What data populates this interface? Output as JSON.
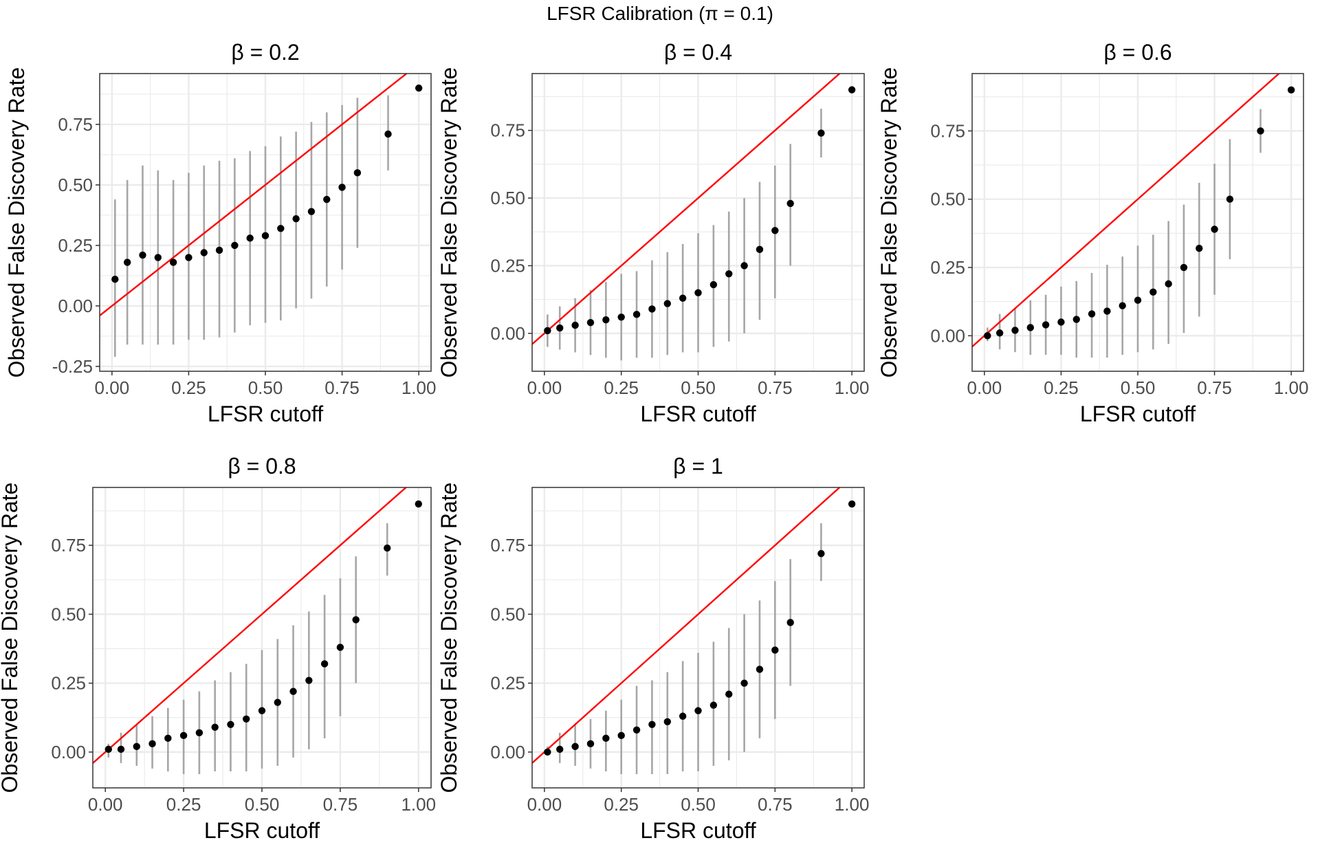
{
  "figure": {
    "title": "LFSR Calibration (π = 0.1)"
  },
  "colors": {
    "identity_line": "#ff0000",
    "points": "#000000",
    "error_bars": "#a6a6a6",
    "grid": "#ebebeb",
    "panel_border": "#333333",
    "tick_label": "#4d4d4d"
  },
  "chart_data": [
    {
      "type": "scatter",
      "title": "β = 0.2",
      "xlabel": "LFSR cutoff",
      "ylabel": "Observed False Discovery Rate",
      "xlim": [
        -0.04,
        1.04
      ],
      "ylim": [
        -0.27,
        0.96
      ],
      "xticks": [
        0,
        0.25,
        0.5,
        0.75,
        1
      ],
      "xtick_labels": [
        "0.00",
        "0.25",
        "0.50",
        "0.75",
        "1.00"
      ],
      "yticks": [
        -0.25,
        0,
        0.25,
        0.5,
        0.75
      ],
      "ytick_labels": [
        "-0.25",
        "0.00",
        "0.25",
        "0.50",
        "0.75"
      ],
      "reference_line": "y = x",
      "x": [
        0.01,
        0.05,
        0.1,
        0.15,
        0.2,
        0.25,
        0.3,
        0.35,
        0.4,
        0.45,
        0.5,
        0.55,
        0.6,
        0.65,
        0.7,
        0.75,
        0.8,
        0.9,
        1.0
      ],
      "y": [
        0.11,
        0.18,
        0.21,
        0.2,
        0.18,
        0.2,
        0.22,
        0.23,
        0.25,
        0.28,
        0.29,
        0.32,
        0.36,
        0.39,
        0.44,
        0.49,
        0.55,
        0.71,
        0.9
      ],
      "lower": [
        -0.21,
        -0.16,
        -0.16,
        -0.16,
        -0.16,
        -0.14,
        -0.14,
        -0.13,
        -0.11,
        -0.08,
        -0.07,
        -0.06,
        -0.01,
        0.03,
        0.08,
        0.15,
        0.24,
        0.56,
        null
      ],
      "upper": [
        0.44,
        0.52,
        0.58,
        0.56,
        0.52,
        0.55,
        0.58,
        0.6,
        0.61,
        0.64,
        0.66,
        0.7,
        0.72,
        0.76,
        0.8,
        0.83,
        0.86,
        0.87,
        null
      ]
    },
    {
      "type": "scatter",
      "title": "β = 0.4",
      "xlabel": "LFSR cutoff",
      "ylabel": "Observed False Discovery Rate",
      "xlim": [
        -0.04,
        1.04
      ],
      "ylim": [
        -0.14,
        0.96
      ],
      "xticks": [
        0,
        0.25,
        0.5,
        0.75,
        1
      ],
      "xtick_labels": [
        "0.00",
        "0.25",
        "0.50",
        "0.75",
        "1.00"
      ],
      "yticks": [
        0,
        0.25,
        0.5,
        0.75
      ],
      "ytick_labels": [
        "0.00",
        "0.25",
        "0.50",
        "0.75"
      ],
      "reference_line": "y = x",
      "x": [
        0.01,
        0.05,
        0.1,
        0.15,
        0.2,
        0.25,
        0.3,
        0.35,
        0.4,
        0.45,
        0.5,
        0.55,
        0.6,
        0.65,
        0.7,
        0.75,
        0.8,
        0.9,
        1.0
      ],
      "y": [
        0.01,
        0.02,
        0.03,
        0.04,
        0.05,
        0.06,
        0.07,
        0.09,
        0.11,
        0.13,
        0.15,
        0.18,
        0.22,
        0.25,
        0.31,
        0.38,
        0.48,
        0.74,
        0.9
      ],
      "lower": [
        -0.05,
        -0.06,
        -0.07,
        -0.08,
        -0.09,
        -0.1,
        -0.09,
        -0.09,
        -0.08,
        -0.07,
        -0.07,
        -0.05,
        -0.03,
        0.0,
        0.05,
        0.13,
        0.25,
        0.65,
        null
      ],
      "upper": [
        0.07,
        0.1,
        0.13,
        0.16,
        0.19,
        0.22,
        0.23,
        0.27,
        0.3,
        0.33,
        0.37,
        0.4,
        0.45,
        0.5,
        0.56,
        0.62,
        0.7,
        0.83,
        null
      ]
    },
    {
      "type": "scatter",
      "title": "β = 0.6",
      "xlabel": "LFSR cutoff",
      "ylabel": "Observed False Discovery Rate",
      "xlim": [
        -0.04,
        1.04
      ],
      "ylim": [
        -0.13,
        0.96
      ],
      "xticks": [
        0,
        0.25,
        0.5,
        0.75,
        1
      ],
      "xtick_labels": [
        "0.00",
        "0.25",
        "0.50",
        "0.75",
        "1.00"
      ],
      "yticks": [
        0,
        0.25,
        0.5,
        0.75
      ],
      "ytick_labels": [
        "0.00",
        "0.25",
        "0.50",
        "0.75"
      ],
      "reference_line": "y = x",
      "x": [
        0.01,
        0.05,
        0.1,
        0.15,
        0.2,
        0.25,
        0.3,
        0.35,
        0.4,
        0.45,
        0.5,
        0.55,
        0.6,
        0.65,
        0.7,
        0.75,
        0.8,
        0.9,
        1.0
      ],
      "y": [
        0.0,
        0.01,
        0.02,
        0.03,
        0.04,
        0.05,
        0.06,
        0.08,
        0.09,
        0.11,
        0.13,
        0.16,
        0.19,
        0.25,
        0.32,
        0.39,
        0.5,
        0.75,
        0.9
      ],
      "lower": [
        -0.02,
        -0.05,
        -0.06,
        -0.07,
        -0.07,
        -0.07,
        -0.08,
        -0.08,
        -0.08,
        -0.07,
        -0.06,
        -0.05,
        -0.03,
        0.01,
        0.07,
        0.15,
        0.28,
        0.67,
        null
      ],
      "upper": [
        0.03,
        0.08,
        0.1,
        0.13,
        0.15,
        0.18,
        0.2,
        0.23,
        0.26,
        0.29,
        0.33,
        0.37,
        0.42,
        0.48,
        0.56,
        0.63,
        0.72,
        0.83,
        null
      ]
    },
    {
      "type": "scatter",
      "title": "β = 0.8",
      "xlabel": "LFSR cutoff",
      "ylabel": "Observed False Discovery Rate",
      "xlim": [
        -0.04,
        1.04
      ],
      "ylim": [
        -0.13,
        0.96
      ],
      "xticks": [
        0,
        0.25,
        0.5,
        0.75,
        1
      ],
      "xtick_labels": [
        "0.00",
        "0.25",
        "0.50",
        "0.75",
        "1.00"
      ],
      "yticks": [
        0,
        0.25,
        0.5,
        0.75
      ],
      "ytick_labels": [
        "0.00",
        "0.25",
        "0.50",
        "0.75"
      ],
      "reference_line": "y = x",
      "x": [
        0.01,
        0.05,
        0.1,
        0.15,
        0.2,
        0.25,
        0.3,
        0.35,
        0.4,
        0.45,
        0.5,
        0.55,
        0.6,
        0.65,
        0.7,
        0.75,
        0.8,
        0.9,
        1.0
      ],
      "y": [
        0.01,
        0.01,
        0.02,
        0.03,
        0.05,
        0.06,
        0.07,
        0.09,
        0.1,
        0.12,
        0.15,
        0.18,
        0.22,
        0.26,
        0.32,
        0.38,
        0.48,
        0.74,
        0.9
      ],
      "lower": [
        -0.02,
        -0.04,
        -0.05,
        -0.06,
        -0.07,
        -0.08,
        -0.08,
        -0.07,
        -0.07,
        -0.07,
        -0.06,
        -0.05,
        -0.02,
        0.01,
        0.05,
        0.13,
        0.25,
        0.64,
        null
      ],
      "upper": [
        0.03,
        0.07,
        0.1,
        0.13,
        0.16,
        0.19,
        0.22,
        0.26,
        0.29,
        0.32,
        0.37,
        0.41,
        0.46,
        0.51,
        0.57,
        0.63,
        0.71,
        0.83,
        null
      ]
    },
    {
      "type": "scatter",
      "title": "β = 1",
      "xlabel": "LFSR cutoff",
      "ylabel": "Observed False Discovery Rate",
      "xlim": [
        -0.04,
        1.04
      ],
      "ylim": [
        -0.13,
        0.96
      ],
      "xticks": [
        0,
        0.25,
        0.5,
        0.75,
        1
      ],
      "xtick_labels": [
        "0.00",
        "0.25",
        "0.50",
        "0.75",
        "1.00"
      ],
      "yticks": [
        0,
        0.25,
        0.5,
        0.75
      ],
      "ytick_labels": [
        "0.00",
        "0.25",
        "0.50",
        "0.75"
      ],
      "reference_line": "y = x",
      "x": [
        0.01,
        0.05,
        0.1,
        0.15,
        0.2,
        0.25,
        0.3,
        0.35,
        0.4,
        0.45,
        0.5,
        0.55,
        0.6,
        0.65,
        0.7,
        0.75,
        0.8,
        0.9,
        1.0
      ],
      "y": [
        0.0,
        0.01,
        0.02,
        0.03,
        0.05,
        0.06,
        0.08,
        0.1,
        0.11,
        0.13,
        0.15,
        0.17,
        0.21,
        0.25,
        0.3,
        0.37,
        0.47,
        0.72,
        0.9
      ],
      "lower": [
        -0.01,
        -0.04,
        -0.05,
        -0.06,
        -0.07,
        -0.08,
        -0.08,
        -0.08,
        -0.08,
        -0.07,
        -0.07,
        -0.05,
        -0.03,
        0.0,
        0.05,
        0.12,
        0.24,
        0.62,
        null
      ],
      "upper": [
        0.02,
        0.07,
        0.1,
        0.12,
        0.15,
        0.19,
        0.24,
        0.26,
        0.29,
        0.33,
        0.36,
        0.4,
        0.45,
        0.5,
        0.55,
        0.62,
        0.7,
        0.83,
        null
      ]
    }
  ]
}
